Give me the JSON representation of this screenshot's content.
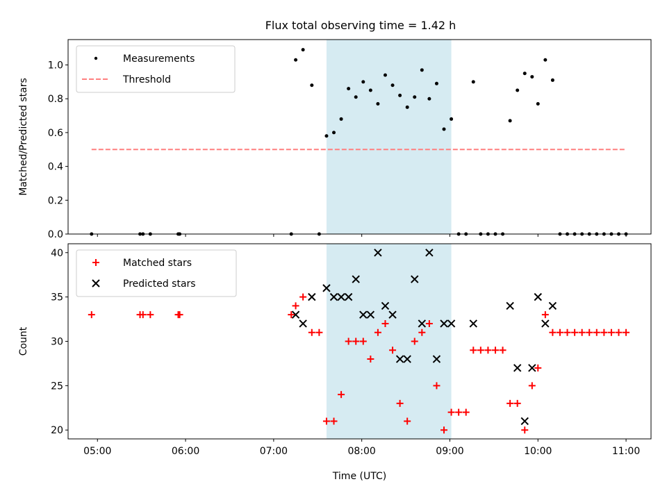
{
  "figure": {
    "title": "Flux total observing time = 1.42 h"
  },
  "chart_data": [
    {
      "type": "scatter",
      "ylabel": "Matched/Predicted stars",
      "xlabel": "",
      "xlim": [
        "04:40",
        "11:17"
      ],
      "ylim": [
        0,
        1.15
      ],
      "yticks": [
        0.0,
        0.2,
        0.4,
        0.6,
        0.8,
        1.0
      ],
      "ytick_labels": [
        "0.0",
        "0.2",
        "0.4",
        "0.6",
        "0.8",
        "1.0"
      ],
      "grid": false,
      "legend_placement": "top-left",
      "shaded_span": {
        "x": [
          "07:36",
          "09:01"
        ],
        "color": "#add8e6"
      },
      "legend": [
        {
          "label": "Measurements",
          "marker": "dot",
          "color": "#000000"
        },
        {
          "label": "Threshold",
          "marker": "dashed-line",
          "color": "#ff7f7f"
        }
      ],
      "series": [
        {
          "name": "Measurements",
          "color": "#000000",
          "points": [
            [
              "04:56",
              0.0
            ],
            [
              "05:29",
              0.0
            ],
            [
              "05:31",
              0.0
            ],
            [
              "05:36",
              0.0
            ],
            [
              "05:55",
              0.0
            ],
            [
              "05:56",
              0.0
            ],
            [
              "07:12",
              0.0
            ],
            [
              "07:15",
              1.03
            ],
            [
              "07:20",
              1.09
            ],
            [
              "07:26",
              0.88
            ],
            [
              "07:31",
              0.0
            ],
            [
              "07:36",
              0.58
            ],
            [
              "07:41",
              0.6
            ],
            [
              "07:46",
              0.68
            ],
            [
              "07:51",
              0.86
            ],
            [
              "07:56",
              0.81
            ],
            [
              "08:01",
              0.9
            ],
            [
              "08:06",
              0.85
            ],
            [
              "08:11",
              0.77
            ],
            [
              "08:16",
              0.94
            ],
            [
              "08:21",
              0.88
            ],
            [
              "08:26",
              0.82
            ],
            [
              "08:31",
              0.75
            ],
            [
              "08:36",
              0.81
            ],
            [
              "08:41",
              0.97
            ],
            [
              "08:46",
              0.8
            ],
            [
              "08:51",
              0.89
            ],
            [
              "08:56",
              0.62
            ],
            [
              "09:01",
              0.68
            ],
            [
              "09:06",
              0.0
            ],
            [
              "09:11",
              0.0
            ],
            [
              "09:16",
              0.9
            ],
            [
              "09:21",
              0.0
            ],
            [
              "09:26",
              0.0
            ],
            [
              "09:31",
              0.0
            ],
            [
              "09:36",
              0.0
            ],
            [
              "09:41",
              0.67
            ],
            [
              "09:46",
              0.85
            ],
            [
              "09:51",
              0.95
            ],
            [
              "09:56",
              0.93
            ],
            [
              "10:00",
              0.77
            ],
            [
              "10:05",
              1.03
            ],
            [
              "10:10",
              0.91
            ],
            [
              "10:15",
              0.0
            ],
            [
              "10:20",
              0.0
            ],
            [
              "10:25",
              0.0
            ],
            [
              "10:30",
              0.0
            ],
            [
              "10:35",
              0.0
            ],
            [
              "10:40",
              0.0
            ],
            [
              "10:45",
              0.0
            ],
            [
              "10:50",
              0.0
            ],
            [
              "10:55",
              0.0
            ],
            [
              "11:00",
              0.0
            ]
          ]
        },
        {
          "name": "Threshold",
          "color": "#ff7f7f",
          "style": "dashed",
          "x": [
            "04:56",
            "11:00"
          ],
          "y": [
            0.5,
            0.5
          ]
        }
      ]
    },
    {
      "type": "scatter",
      "ylabel": "Count",
      "xlabel": "Time (UTC)",
      "xlim": [
        "04:40",
        "11:17"
      ],
      "ylim": [
        19,
        41
      ],
      "xticks": [
        "05:00",
        "06:00",
        "07:00",
        "08:00",
        "09:00",
        "10:00",
        "11:00"
      ],
      "yticks": [
        20,
        25,
        30,
        35,
        40
      ],
      "ytick_labels": [
        "20",
        "25",
        "30",
        "35",
        "40"
      ],
      "grid": false,
      "legend_placement": "top-left",
      "shaded_span": {
        "x": [
          "07:36",
          "09:01"
        ],
        "color": "#add8e6"
      },
      "legend": [
        {
          "label": "Matched stars",
          "marker": "plus",
          "color": "#ff0000"
        },
        {
          "label": "Predicted stars",
          "marker": "x",
          "color": "#000000"
        }
      ],
      "series": [
        {
          "name": "Matched stars",
          "color": "#ff0000",
          "marker": "plus",
          "points": [
            [
              "04:56",
              33
            ],
            [
              "05:29",
              33
            ],
            [
              "05:31",
              33
            ],
            [
              "05:36",
              33
            ],
            [
              "05:55",
              33
            ],
            [
              "05:56",
              33
            ],
            [
              "07:12",
              33
            ],
            [
              "07:15",
              34
            ],
            [
              "07:20",
              35
            ],
            [
              "07:26",
              31
            ],
            [
              "07:31",
              31
            ],
            [
              "07:36",
              21
            ],
            [
              "07:41",
              21
            ],
            [
              "07:46",
              24
            ],
            [
              "07:51",
              30
            ],
            [
              "07:56",
              30
            ],
            [
              "08:01",
              30
            ],
            [
              "08:06",
              28
            ],
            [
              "08:11",
              31
            ],
            [
              "08:16",
              32
            ],
            [
              "08:21",
              29
            ],
            [
              "08:26",
              23
            ],
            [
              "08:31",
              21
            ],
            [
              "08:36",
              30
            ],
            [
              "08:41",
              31
            ],
            [
              "08:46",
              32
            ],
            [
              "08:51",
              25
            ],
            [
              "08:56",
              20
            ],
            [
              "09:01",
              22
            ],
            [
              "09:06",
              22
            ],
            [
              "09:11",
              22
            ],
            [
              "09:16",
              29
            ],
            [
              "09:21",
              29
            ],
            [
              "09:26",
              29
            ],
            [
              "09:31",
              29
            ],
            [
              "09:36",
              29
            ],
            [
              "09:41",
              23
            ],
            [
              "09:46",
              23
            ],
            [
              "09:51",
              20
            ],
            [
              "09:56",
              25
            ],
            [
              "10:00",
              27
            ],
            [
              "10:05",
              33
            ],
            [
              "10:10",
              31
            ],
            [
              "10:15",
              31
            ],
            [
              "10:20",
              31
            ],
            [
              "10:25",
              31
            ],
            [
              "10:30",
              31
            ],
            [
              "10:35",
              31
            ],
            [
              "10:40",
              31
            ],
            [
              "10:45",
              31
            ],
            [
              "10:50",
              31
            ],
            [
              "10:55",
              31
            ],
            [
              "11:00",
              31
            ]
          ]
        },
        {
          "name": "Predicted stars",
          "color": "#000000",
          "marker": "x",
          "points": [
            [
              "07:15",
              33
            ],
            [
              "07:20",
              32
            ],
            [
              "07:26",
              35
            ],
            [
              "07:36",
              36
            ],
            [
              "07:41",
              35
            ],
            [
              "07:46",
              35
            ],
            [
              "07:51",
              35
            ],
            [
              "07:56",
              37
            ],
            [
              "08:01",
              33
            ],
            [
              "08:06",
              33
            ],
            [
              "08:11",
              40
            ],
            [
              "08:16",
              34
            ],
            [
              "08:21",
              33
            ],
            [
              "08:26",
              28
            ],
            [
              "08:31",
              28
            ],
            [
              "08:36",
              37
            ],
            [
              "08:41",
              32
            ],
            [
              "08:46",
              40
            ],
            [
              "08:51",
              28
            ],
            [
              "08:56",
              32
            ],
            [
              "09:01",
              32
            ],
            [
              "09:16",
              32
            ],
            [
              "09:41",
              34
            ],
            [
              "09:46",
              27
            ],
            [
              "09:51",
              21
            ],
            [
              "09:56",
              27
            ],
            [
              "10:00",
              35
            ],
            [
              "10:05",
              32
            ],
            [
              "10:10",
              34
            ]
          ]
        }
      ]
    }
  ]
}
